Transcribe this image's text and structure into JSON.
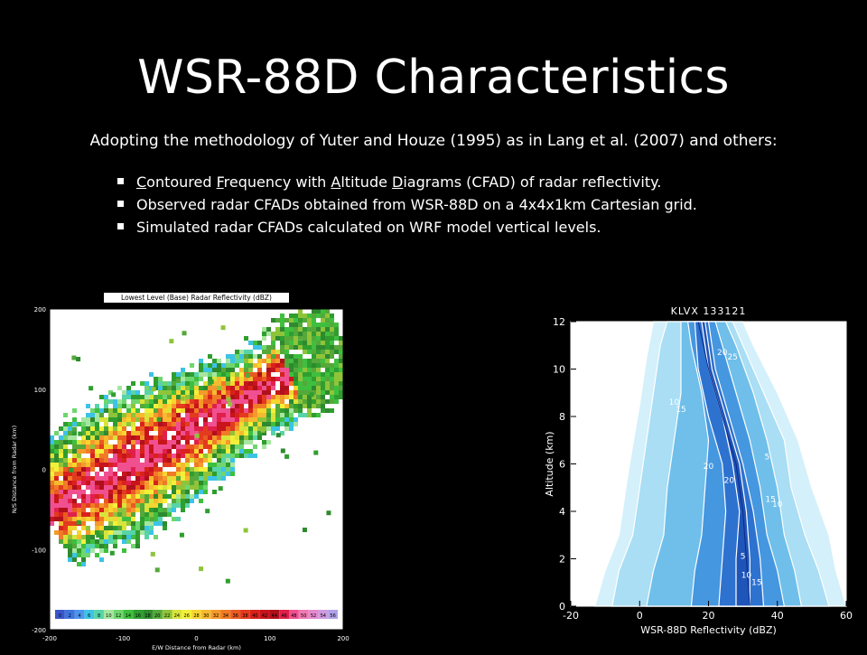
{
  "slide": {
    "title": "WSR-88D Characteristics",
    "subtitle": "Adopting the methodology of Yuter and Houze (1995) as in Lang et al. (2007) and others:",
    "bullets": [
      {
        "parts": [
          [
            "u",
            "C"
          ],
          [
            "t",
            "ontoured "
          ],
          [
            "u",
            "F"
          ],
          [
            "t",
            "requency with "
          ],
          [
            "u",
            "A"
          ],
          [
            "t",
            "ltitude "
          ],
          [
            "u",
            "D"
          ],
          [
            "t",
            "iagrams (CFAD) of radar reflectivity."
          ]
        ]
      },
      {
        "parts": [
          [
            "t",
            "Observed radar CFADs obtained from WSR-88D on a 4x4x1km Cartesian grid."
          ]
        ]
      },
      {
        "parts": [
          [
            "t",
            "Simulated radar CFADs calculated on WRF model vertical levels."
          ]
        ]
      }
    ]
  },
  "reflectivity_map": {
    "title": "Lowest Level (Base) Radar Reflectivity (dBZ)",
    "station_label": "KLVX",
    "xlabel": "E/W Distance from Radar (km)",
    "ylabel": "N/S Distance from Radar (km)",
    "xticks": [
      "-200",
      "-100",
      "0",
      "100",
      "200"
    ],
    "yticks": [
      "200",
      "100",
      "0",
      "-100",
      "-200"
    ],
    "colorbar": [
      "0",
      "2",
      "4",
      "6",
      "8",
      "10",
      "12",
      "14",
      "16",
      "18",
      "20",
      "22",
      "24",
      "26",
      "28",
      "30",
      "32",
      "34",
      "36",
      "38",
      "40",
      "42",
      "44",
      "46",
      "48",
      "50",
      "52",
      "54",
      "56"
    ],
    "colorbar_colors": [
      "#3a55c8",
      "#3f74de",
      "#4d95ea",
      "#3cc3e6",
      "#57d4a8",
      "#a6e6a0",
      "#6fd66f",
      "#3fbf3f",
      "#2f9e2f",
      "#2e8a2e",
      "#55a83a",
      "#8fc43a",
      "#d8e43a",
      "#f3f03a",
      "#f6d52f",
      "#f6ba2f",
      "#f49a2b",
      "#f07b26",
      "#ea5a22",
      "#e23b1e",
      "#d8221b",
      "#c8141b",
      "#b0101b",
      "#e0204a",
      "#f05090",
      "#f07ab0",
      "#e68ad0",
      "#d09ae0",
      "#b0a0e8"
    ]
  },
  "chart_data": {
    "type": "heatmap",
    "title": "KLVX 133121",
    "xlabel": "WSR-88D Reflectivity (dBZ)",
    "ylabel": "Altitude (km)",
    "xlim": [
      -20,
      60
    ],
    "ylim": [
      0,
      12
    ],
    "xticks": [
      -20,
      0,
      20,
      40,
      60
    ],
    "yticks": [
      0,
      2,
      4,
      6,
      8,
      10,
      12
    ],
    "contour_levels": [
      0.1,
      0.5,
      1,
      3,
      5,
      10,
      15,
      20,
      25
    ],
    "contour_labels": [
      "5",
      "10",
      "15",
      "20",
      "25"
    ],
    "fill_colors": [
      "#d4f0fa",
      "#a9def4",
      "#6fbfea",
      "#4597e0",
      "#2e72d0",
      "#1f55b8"
    ],
    "fill_bands": [
      {
        "left": [
          [
            -13,
            0
          ],
          [
            -10,
            1.5
          ],
          [
            -6,
            3
          ],
          [
            -4,
            5
          ],
          [
            -2,
            6.8
          ],
          [
            0,
            8.5
          ],
          [
            2,
            10.5
          ],
          [
            4,
            12
          ]
        ],
        "right": [
          [
            60,
            0
          ],
          [
            57,
            1.5
          ],
          [
            55,
            3
          ],
          [
            50,
            5
          ],
          [
            46,
            7
          ],
          [
            40,
            9
          ],
          [
            33,
            11
          ],
          [
            30,
            12
          ]
        ]
      },
      {
        "left": [
          [
            -8,
            0
          ],
          [
            -6,
            1.5
          ],
          [
            -2,
            3
          ],
          [
            0,
            5
          ],
          [
            2,
            7
          ],
          [
            4,
            9
          ],
          [
            6,
            11
          ],
          [
            8,
            12
          ]
        ],
        "right": [
          [
            55,
            0
          ],
          [
            52,
            1.5
          ],
          [
            48,
            3
          ],
          [
            44,
            5
          ],
          [
            42,
            7
          ],
          [
            36,
            9
          ],
          [
            30,
            11
          ],
          [
            27,
            12
          ]
        ]
      },
      {
        "left": [
          [
            2,
            0
          ],
          [
            4,
            1.5
          ],
          [
            7,
            3
          ],
          [
            8,
            5
          ],
          [
            10,
            7
          ],
          [
            12,
            9
          ],
          [
            12,
            11
          ],
          [
            12,
            12
          ]
        ],
        "right": [
          [
            47,
            0
          ],
          [
            45,
            1.5
          ],
          [
            42,
            3
          ],
          [
            40,
            5
          ],
          [
            37,
            7
          ],
          [
            33,
            9
          ],
          [
            28,
            11
          ],
          [
            25,
            12
          ]
        ]
      },
      {
        "left": [
          [
            15,
            0
          ],
          [
            16,
            1.5
          ],
          [
            18,
            3
          ],
          [
            19,
            5
          ],
          [
            20,
            7
          ],
          [
            18,
            9
          ],
          [
            15,
            11
          ],
          [
            14,
            12
          ]
        ],
        "right": [
          [
            42,
            0
          ],
          [
            40,
            1.5
          ],
          [
            37,
            3
          ],
          [
            35,
            5
          ],
          [
            32,
            7
          ],
          [
            28,
            9
          ],
          [
            24,
            11
          ],
          [
            22,
            12
          ]
        ]
      },
      {
        "left": [
          [
            23,
            0
          ],
          [
            24,
            2
          ],
          [
            25,
            4
          ],
          [
            24,
            6
          ],
          [
            20,
            8
          ],
          [
            17,
            10
          ],
          [
            16,
            12
          ]
        ],
        "right": [
          [
            36,
            0
          ],
          [
            35,
            2
          ],
          [
            33,
            4
          ],
          [
            30,
            6
          ],
          [
            26,
            8
          ],
          [
            22,
            10
          ],
          [
            20,
            12
          ]
        ]
      },
      {
        "left": [
          [
            28,
            0
          ],
          [
            28,
            2
          ],
          [
            29,
            4
          ],
          [
            27,
            6
          ],
          [
            24,
            8
          ],
          [
            20,
            10
          ],
          [
            18,
            12
          ]
        ],
        "right": [
          [
            32,
            0
          ],
          [
            32,
            2
          ],
          [
            31,
            4
          ],
          [
            29,
            6
          ],
          [
            25,
            8
          ],
          [
            21,
            10
          ],
          [
            19,
            12
          ]
        ]
      }
    ],
    "peak_line": [
      [
        32,
        0
      ],
      [
        31,
        2
      ],
      [
        30,
        4
      ],
      [
        28,
        6
      ],
      [
        24,
        8
      ],
      [
        20,
        10
      ],
      [
        17,
        12
      ]
    ]
  }
}
